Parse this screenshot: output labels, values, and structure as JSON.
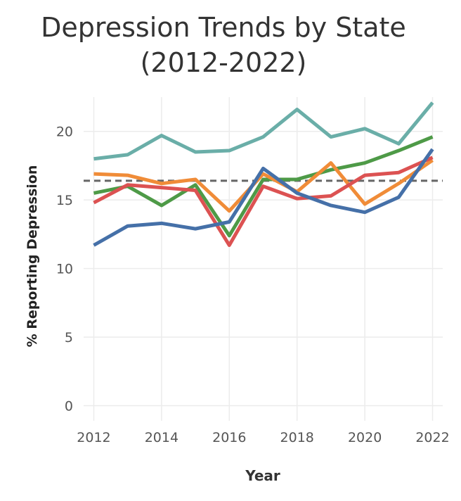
{
  "chart_data": {
    "type": "line",
    "title_line1": "Depression Trends by State",
    "title_line2": "(2012-2022)",
    "xlabel": "Year",
    "ylabel": "% Reporting Depression",
    "x": [
      2012,
      2013,
      2014,
      2015,
      2016,
      2017,
      2018,
      2019,
      2020,
      2021,
      2022
    ],
    "xticks": [
      2012,
      2014,
      2016,
      2018,
      2020,
      2022
    ],
    "yticks": [
      0,
      5,
      10,
      15,
      20
    ],
    "xlim": [
      2011.7,
      2022.3
    ],
    "ylim": [
      -1.1,
      22.5
    ],
    "grid": true,
    "reference_line": {
      "y": 16.4,
      "style": "dashed",
      "color": "#666666"
    },
    "series": [
      {
        "color": "#6aaea8",
        "values": [
          18.0,
          18.3,
          19.7,
          18.5,
          18.6,
          19.6,
          21.6,
          19.6,
          20.2,
          19.1,
          22.1
        ]
      },
      {
        "color": "#4e9a47",
        "values": [
          15.5,
          16.0,
          14.6,
          16.1,
          12.4,
          16.5,
          16.5,
          17.2,
          17.7,
          18.6,
          19.6
        ]
      },
      {
        "color": "#f08c38",
        "values": [
          16.9,
          16.8,
          16.2,
          16.5,
          14.2,
          16.9,
          15.6,
          17.7,
          14.7,
          16.2,
          17.9
        ]
      },
      {
        "color": "#dc5252",
        "values": [
          14.8,
          16.1,
          15.9,
          15.7,
          11.7,
          16.0,
          15.1,
          15.3,
          16.8,
          17.0,
          18.1
        ]
      },
      {
        "color": "#4570a8",
        "values": [
          11.7,
          13.1,
          13.3,
          12.9,
          13.4,
          17.3,
          15.5,
          14.6,
          14.1,
          15.2,
          18.7
        ]
      }
    ]
  }
}
